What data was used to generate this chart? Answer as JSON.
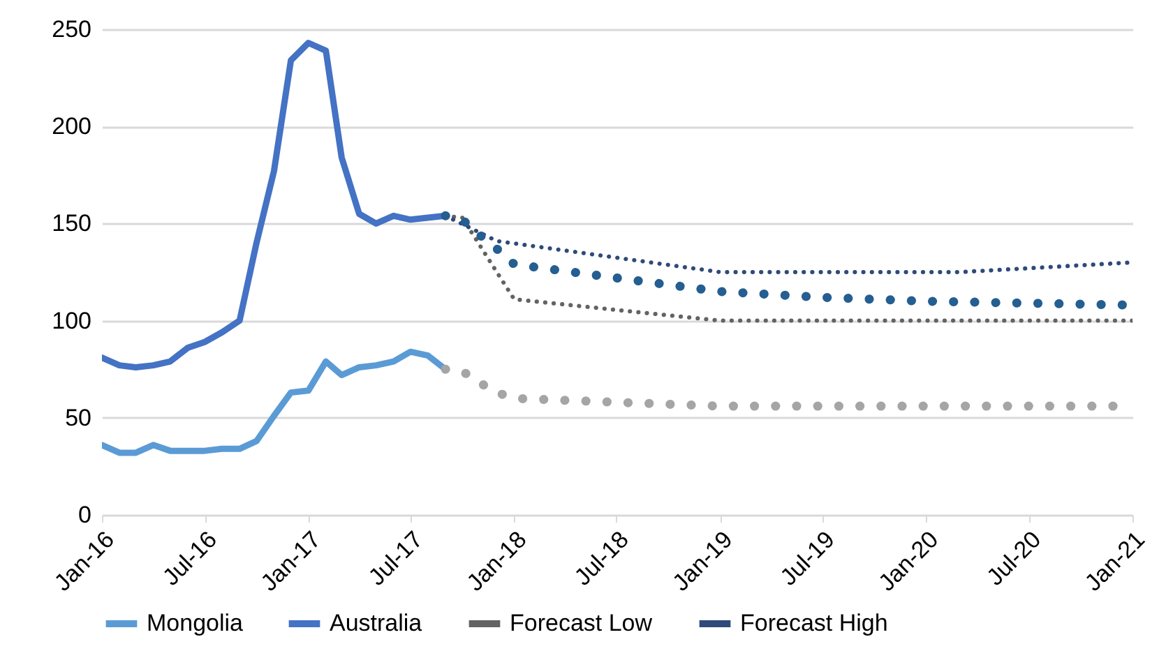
{
  "chart_data": {
    "type": "line",
    "xlim": [
      "2016-01",
      "2021-01"
    ],
    "xticks": [
      {
        "value": "2016-01",
        "label": "Jan-16"
      },
      {
        "value": "2016-07",
        "label": "Jul-16"
      },
      {
        "value": "2017-01",
        "label": "Jan-17"
      },
      {
        "value": "2017-07",
        "label": "Jul-17"
      },
      {
        "value": "2018-01",
        "label": "Jan-18"
      },
      {
        "value": "2018-07",
        "label": "Jul-18"
      },
      {
        "value": "2019-01",
        "label": "Jan-19"
      },
      {
        "value": "2019-07",
        "label": "Jul-19"
      },
      {
        "value": "2020-01",
        "label": "Jan-20"
      },
      {
        "value": "2020-07",
        "label": "Jul-20"
      },
      {
        "value": "2021-01",
        "label": "Jan-21"
      }
    ],
    "ylim": [
      0,
      250
    ],
    "yticks": [
      0,
      50,
      100,
      150,
      200,
      250
    ],
    "grid": "y",
    "legend": "bottom",
    "x": [
      "2016-01",
      "2016-02",
      "2016-03",
      "2016-04",
      "2016-05",
      "2016-06",
      "2016-07",
      "2016-08",
      "2016-09",
      "2016-10",
      "2016-11",
      "2016-12",
      "2017-01",
      "2017-02",
      "2017-03",
      "2017-04",
      "2017-05",
      "2017-06",
      "2017-07",
      "2017-08",
      "2017-09"
    ],
    "series": [
      {
        "name": "Mongolia",
        "color": "#5b9bd5",
        "line_style": "solid",
        "values": [
          36,
          32,
          32,
          36,
          33,
          33,
          33,
          34,
          34,
          38,
          51,
          63,
          64,
          79,
          72,
          76,
          77,
          79,
          84,
          82,
          75
        ]
      },
      {
        "name": "Australia",
        "color": "#4472c4",
        "line_style": "solid",
        "values": [
          81,
          77,
          76,
          77,
          79,
          86,
          89,
          94,
          100,
          140,
          177,
          234,
          243,
          239,
          184,
          155,
          150,
          154,
          152,
          153,
          154
        ]
      },
      {
        "name": "Forecast Low",
        "color": "#636363",
        "line_style": "dotted",
        "x": [
          "2017-09",
          "2017-10",
          "2017-12",
          "2018-01",
          "2019-01",
          "2021-01"
        ],
        "values": [
          154,
          153,
          125,
          111,
          100,
          100
        ]
      },
      {
        "name": "Forecast High",
        "color": "#2f4a7a",
        "line_style": "dotted",
        "x": [
          "2017-09",
          "2017-12",
          "2019-01",
          "2020-03",
          "2021-01"
        ],
        "values": [
          154,
          141,
          125,
          125,
          130
        ]
      },
      {
        "color": "#255e91",
        "line_style": "dotted",
        "x": [
          "2017-09",
          "2017-10",
          "2017-11",
          "2017-12",
          "2018-01",
          "2018-07",
          "2019-01",
          "2019-07",
          "2020-01",
          "2020-07",
          "2021-01"
        ],
        "values": [
          154,
          152,
          144,
          137,
          129,
          122,
          115,
          112,
          110,
          109,
          108
        ]
      },
      {
        "color": "#a5a5a5",
        "line_style": "dotted",
        "x": [
          "2017-09",
          "2017-10",
          "2017-11",
          "2017-12",
          "2018-01",
          "2018-07",
          "2019-01",
          "2020-01",
          "2021-01"
        ],
        "values": [
          75,
          74,
          68,
          63,
          60,
          58,
          56,
          56,
          56
        ]
      }
    ]
  }
}
